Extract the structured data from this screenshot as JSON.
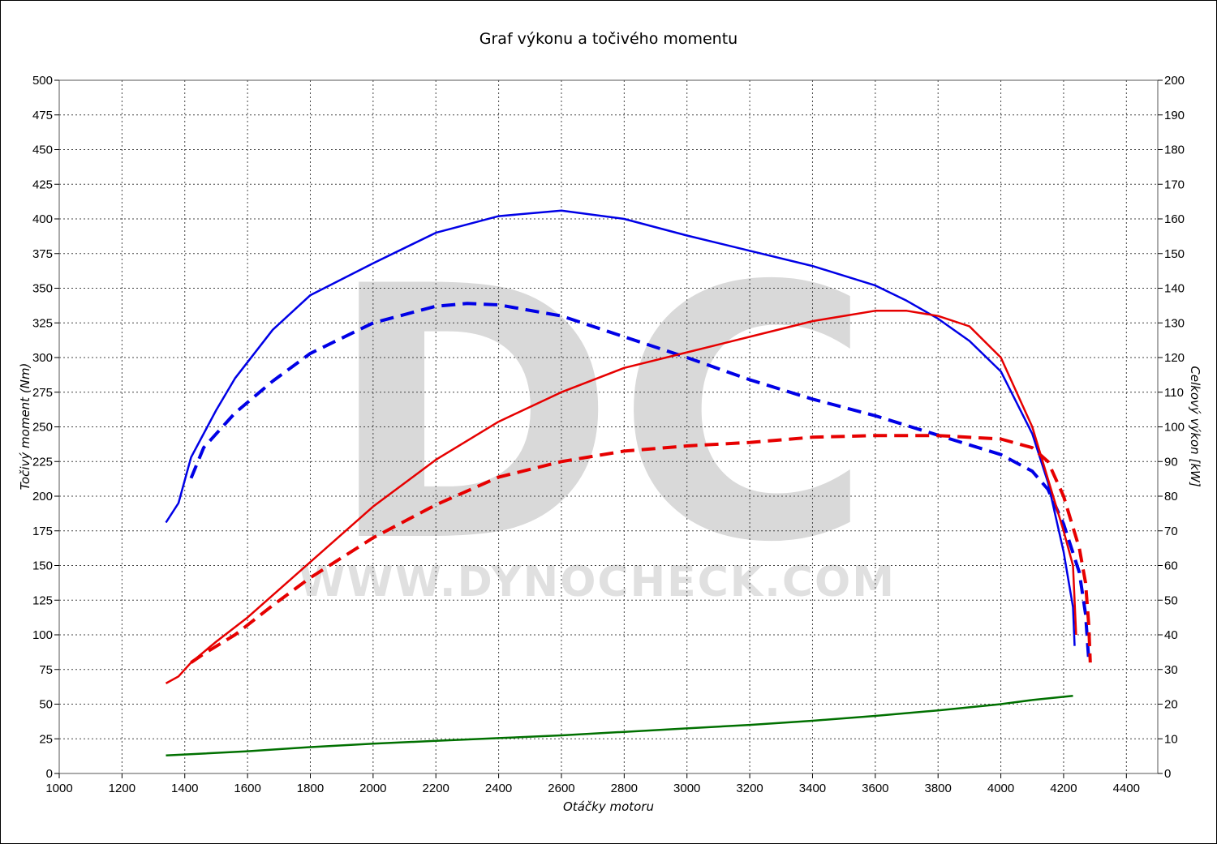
{
  "chart_data": {
    "type": "line",
    "title": "Graf výkonu a točivého momentu",
    "xlabel": "Otáčky motoru",
    "ylabel_left": "Točivý moment (Nm)",
    "ylabel_right": "Celkový výkon [kW]",
    "xlim": [
      1000,
      4500
    ],
    "ylim_left": [
      0,
      500
    ],
    "ylim_right": [
      0,
      200
    ],
    "x_ticks": [
      1000,
      1200,
      1400,
      1600,
      1800,
      2000,
      2200,
      2400,
      2600,
      2800,
      3000,
      3200,
      3400,
      3600,
      3800,
      4000,
      4200,
      4400
    ],
    "y_ticks_left": [
      0,
      25,
      50,
      75,
      100,
      125,
      150,
      175,
      200,
      225,
      250,
      275,
      300,
      325,
      350,
      375,
      400,
      425,
      450,
      475,
      500
    ],
    "y_ticks_right": [
      0,
      10,
      20,
      30,
      40,
      50,
      60,
      70,
      80,
      90,
      100,
      110,
      120,
      130,
      140,
      150,
      160,
      170,
      180,
      190,
      200
    ],
    "grid": true,
    "legend": "none",
    "watermark": {
      "logo": "DC",
      "url": "WWW.DYNOCHECK.COM"
    },
    "series": [
      {
        "axis": "left",
        "color": "#0000e6",
        "style": "solid",
        "points": [
          [
            1340,
            181
          ],
          [
            1380,
            195
          ],
          [
            1420,
            228
          ],
          [
            1500,
            262
          ],
          [
            1560,
            285
          ],
          [
            1680,
            320
          ],
          [
            1800,
            345
          ],
          [
            2000,
            368
          ],
          [
            2200,
            390
          ],
          [
            2400,
            402
          ],
          [
            2600,
            406
          ],
          [
            2800,
            400
          ],
          [
            3000,
            388
          ],
          [
            3200,
            377
          ],
          [
            3400,
            366
          ],
          [
            3600,
            352
          ],
          [
            3700,
            341
          ],
          [
            3800,
            328
          ],
          [
            3900,
            312
          ],
          [
            4000,
            290
          ],
          [
            4100,
            245
          ],
          [
            4150,
            210
          ],
          [
            4200,
            160
          ],
          [
            4230,
            120
          ],
          [
            4235,
            92
          ]
        ]
      },
      {
        "axis": "left",
        "color": "#0000e6",
        "style": "dashed",
        "points": [
          [
            1420,
            213
          ],
          [
            1460,
            235
          ],
          [
            1560,
            260
          ],
          [
            1680,
            283
          ],
          [
            1800,
            303
          ],
          [
            2000,
            325
          ],
          [
            2200,
            337
          ],
          [
            2300,
            339
          ],
          [
            2400,
            338
          ],
          [
            2600,
            330
          ],
          [
            2800,
            315
          ],
          [
            3000,
            300
          ],
          [
            3200,
            284
          ],
          [
            3400,
            270
          ],
          [
            3600,
            258
          ],
          [
            3800,
            244
          ],
          [
            4000,
            230
          ],
          [
            4100,
            218
          ],
          [
            4150,
            205
          ],
          [
            4200,
            180
          ],
          [
            4250,
            145
          ],
          [
            4270,
            115
          ],
          [
            4280,
            82
          ]
        ]
      },
      {
        "axis": "right",
        "color": "#e60000",
        "style": "solid",
        "points": [
          [
            1340,
            26
          ],
          [
            1380,
            28
          ],
          [
            1420,
            32
          ],
          [
            1500,
            38
          ],
          [
            1600,
            45
          ],
          [
            1800,
            61
          ],
          [
            2000,
            77
          ],
          [
            2200,
            90.5
          ],
          [
            2400,
            101.5
          ],
          [
            2600,
            110
          ],
          [
            2800,
            117
          ],
          [
            3000,
            121.5
          ],
          [
            3200,
            126
          ],
          [
            3400,
            130.5
          ],
          [
            3600,
            133.5
          ],
          [
            3700,
            133.5
          ],
          [
            3800,
            132
          ],
          [
            3900,
            129
          ],
          [
            4000,
            120
          ],
          [
            4100,
            100
          ],
          [
            4150,
            85
          ],
          [
            4200,
            70
          ],
          [
            4230,
            60
          ],
          [
            4240,
            40
          ]
        ]
      },
      {
        "axis": "right",
        "color": "#e60000",
        "style": "dashed",
        "points": [
          [
            1420,
            32
          ],
          [
            1460,
            34.5
          ],
          [
            1560,
            40
          ],
          [
            1680,
            48.5
          ],
          [
            1800,
            56.5
          ],
          [
            2000,
            68
          ],
          [
            2200,
            77.5
          ],
          [
            2400,
            85.5
          ],
          [
            2600,
            90
          ],
          [
            2800,
            93
          ],
          [
            3000,
            94.5
          ],
          [
            3200,
            95.5
          ],
          [
            3400,
            97
          ],
          [
            3600,
            97.5
          ],
          [
            3800,
            97.5
          ],
          [
            4000,
            96.5
          ],
          [
            4100,
            94
          ],
          [
            4150,
            90
          ],
          [
            4200,
            80
          ],
          [
            4250,
            65
          ],
          [
            4270,
            55
          ],
          [
            4280,
            43
          ],
          [
            4285,
            32
          ]
        ]
      },
      {
        "axis": "left",
        "color": "#007000",
        "style": "solid",
        "points": [
          [
            1340,
            13
          ],
          [
            1600,
            16
          ],
          [
            1800,
            19
          ],
          [
            2000,
            21.5
          ],
          [
            2200,
            23.5
          ],
          [
            2400,
            25.5
          ],
          [
            2600,
            27.5
          ],
          [
            2800,
            30
          ],
          [
            3000,
            32.5
          ],
          [
            3200,
            35
          ],
          [
            3400,
            38
          ],
          [
            3600,
            41.5
          ],
          [
            3800,
            45.5
          ],
          [
            4000,
            50
          ],
          [
            4100,
            53
          ],
          [
            4230,
            56
          ]
        ]
      }
    ]
  }
}
